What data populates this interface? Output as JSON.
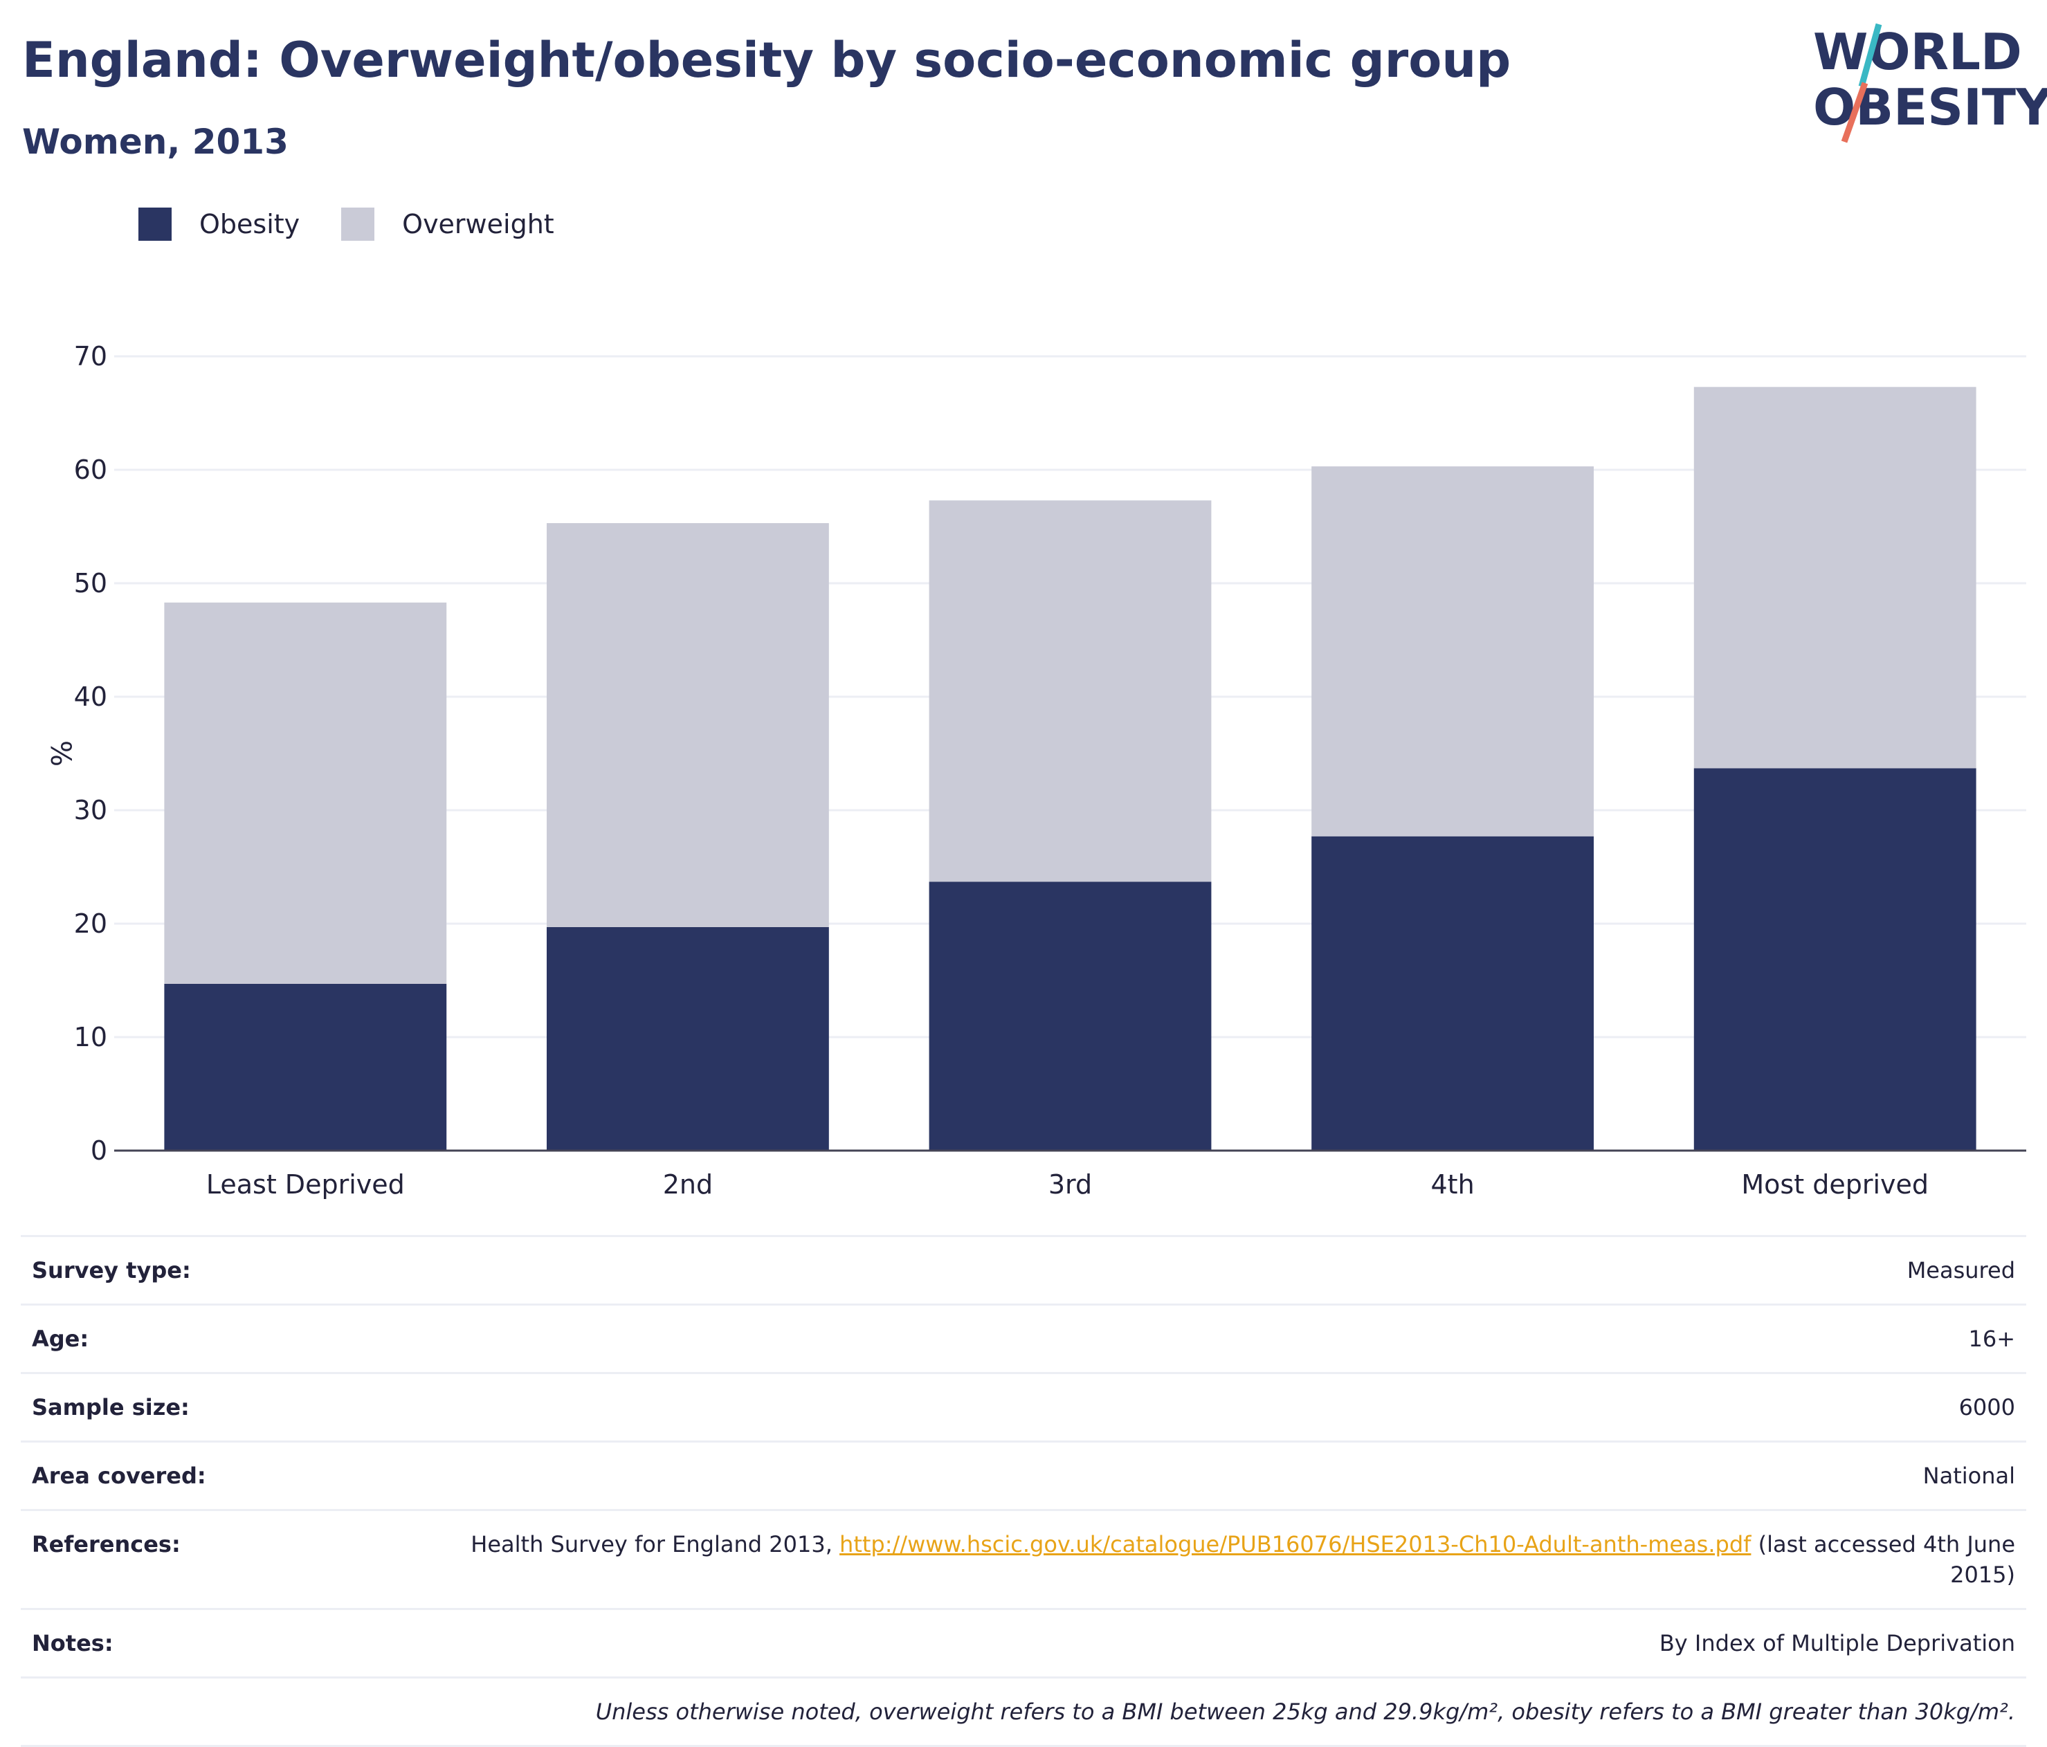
{
  "header": {
    "title": "England: Overweight/obesity by socio-economic group",
    "subtitle": "Women, 2013"
  },
  "logo": {
    "line1": "WORLD",
    "line2": "OBESITY",
    "slash_color_top": "#3ab8c4",
    "slash_color_bottom": "#e8705b"
  },
  "chart_data": {
    "type": "bar",
    "stacked": true,
    "categories": [
      "Least Deprived",
      "2nd",
      "3rd",
      "4th",
      "Most deprived"
    ],
    "series": [
      {
        "name": "Obesity",
        "color": "#2a3562",
        "values": [
          14.7,
          19.7,
          23.7,
          27.7,
          33.7
        ]
      },
      {
        "name": "Overweight",
        "color": "#cacbd7",
        "values": [
          33.6,
          35.6,
          33.6,
          32.6,
          33.6
        ]
      }
    ],
    "title": "England: Overweight/obesity by socio-economic group",
    "subtitle": "Women, 2013",
    "xlabel": "",
    "ylabel": "%",
    "ylim": [
      0,
      70
    ],
    "yticks": [
      0,
      10,
      20,
      30,
      40,
      50,
      60,
      70
    ],
    "grid": true,
    "legend_position": "top-left"
  },
  "info": {
    "rows": [
      {
        "label": "Survey type:",
        "value": "Measured"
      },
      {
        "label": "Age:",
        "value": "16+"
      },
      {
        "label": "Sample size:",
        "value": "6000"
      },
      {
        "label": "Area covered:",
        "value": "National"
      }
    ],
    "references": {
      "label": "References:",
      "prefix": "Health Survey for England 2013, ",
      "link": "http://www.hscic.gov.uk/catalogue/PUB16076/HSE2013-Ch10-Adult-anth-meas.pdf",
      "suffix": " (last accessed 4th June 2015)"
    },
    "notes": {
      "label": "Notes:",
      "value": "By Index of Multiple Deprivation"
    },
    "footnote": "Unless otherwise noted, overweight refers to a BMI between 25kg and 29.9kg/m², obesity refers to a BMI greater than 30kg/m²."
  }
}
